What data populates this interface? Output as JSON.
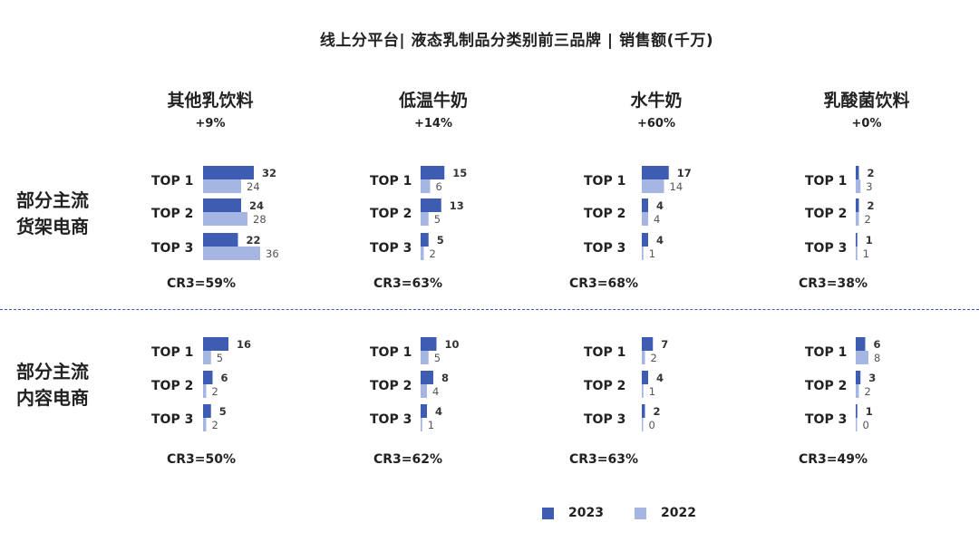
{
  "chart_data": {
    "type": "bar",
    "orientation": "horizontal",
    "title": "线上分平台| 液态乳制品分类别前三品牌 | 销售额(千万)",
    "legend": [
      {
        "name": "2023",
        "color": "#3d5cb2"
      },
      {
        "name": "2022",
        "color": "#a4b6e1"
      }
    ],
    "categories": [
      {
        "name": "其他乳饮料",
        "growth": "+9%"
      },
      {
        "name": "低温牛奶",
        "growth": "+14%"
      },
      {
        "name": "水牛奶",
        "growth": "+60%"
      },
      {
        "name": "乳酸菌饮料",
        "growth": "+0%"
      }
    ],
    "sections": [
      {
        "name": "部分主流货架电商",
        "label_lines": [
          "部分主流",
          "货架电商"
        ],
        "groups": [
          {
            "items": [
              {
                "rank": "TOP 1",
                "v2023": 32,
                "v2022": 24
              },
              {
                "rank": "TOP 2",
                "v2023": 24,
                "v2022": 28
              },
              {
                "rank": "TOP 3",
                "v2023": 22,
                "v2022": 36
              }
            ],
            "cr3": "CR3=59%"
          },
          {
            "items": [
              {
                "rank": "TOP 1",
                "v2023": 15,
                "v2022": 6
              },
              {
                "rank": "TOP 2",
                "v2023": 13,
                "v2022": 5
              },
              {
                "rank": "TOP 3",
                "v2023": 5,
                "v2022": 2
              }
            ],
            "cr3": "CR3=63%"
          },
          {
            "items": [
              {
                "rank": "TOP 1",
                "v2023": 17,
                "v2022": 14
              },
              {
                "rank": "TOP 2",
                "v2023": 4,
                "v2022": 4
              },
              {
                "rank": "TOP 3",
                "v2023": 4,
                "v2022": 1
              }
            ],
            "cr3": "CR3=68%"
          },
          {
            "items": [
              {
                "rank": "TOP 1",
                "v2023": 2,
                "v2022": 3
              },
              {
                "rank": "TOP 2",
                "v2023": 2,
                "v2022": 2
              },
              {
                "rank": "TOP 3",
                "v2023": 1,
                "v2022": 1
              }
            ],
            "cr3": "CR3=38%"
          }
        ]
      },
      {
        "name": "部分主流内容电商",
        "label_lines": [
          "部分主流",
          "内容电商"
        ],
        "groups": [
          {
            "items": [
              {
                "rank": "TOP 1",
                "v2023": 16,
                "v2022": 5
              },
              {
                "rank": "TOP 2",
                "v2023": 6,
                "v2022": 2
              },
              {
                "rank": "TOP 3",
                "v2023": 5,
                "v2022": 2
              }
            ],
            "cr3": "CR3=50%"
          },
          {
            "items": [
              {
                "rank": "TOP 1",
                "v2023": 10,
                "v2022": 5
              },
              {
                "rank": "TOP 2",
                "v2023": 8,
                "v2022": 4
              },
              {
                "rank": "TOP 3",
                "v2023": 4,
                "v2022": 1
              }
            ],
            "cr3": "CR3=62%"
          },
          {
            "items": [
              {
                "rank": "TOP 1",
                "v2023": 7,
                "v2022": 2
              },
              {
                "rank": "TOP 2",
                "v2023": 4,
                "v2022": 1
              },
              {
                "rank": "TOP 3",
                "v2023": 2,
                "v2022": 0
              }
            ],
            "cr3": "CR3=63%"
          },
          {
            "items": [
              {
                "rank": "TOP 1",
                "v2023": 6,
                "v2022": 8
              },
              {
                "rank": "TOP 2",
                "v2023": 3,
                "v2022": 2
              },
              {
                "rank": "TOP 3",
                "v2023": 1,
                "v2022": 0
              }
            ],
            "cr3": "CR3=49%"
          }
        ]
      }
    ]
  }
}
